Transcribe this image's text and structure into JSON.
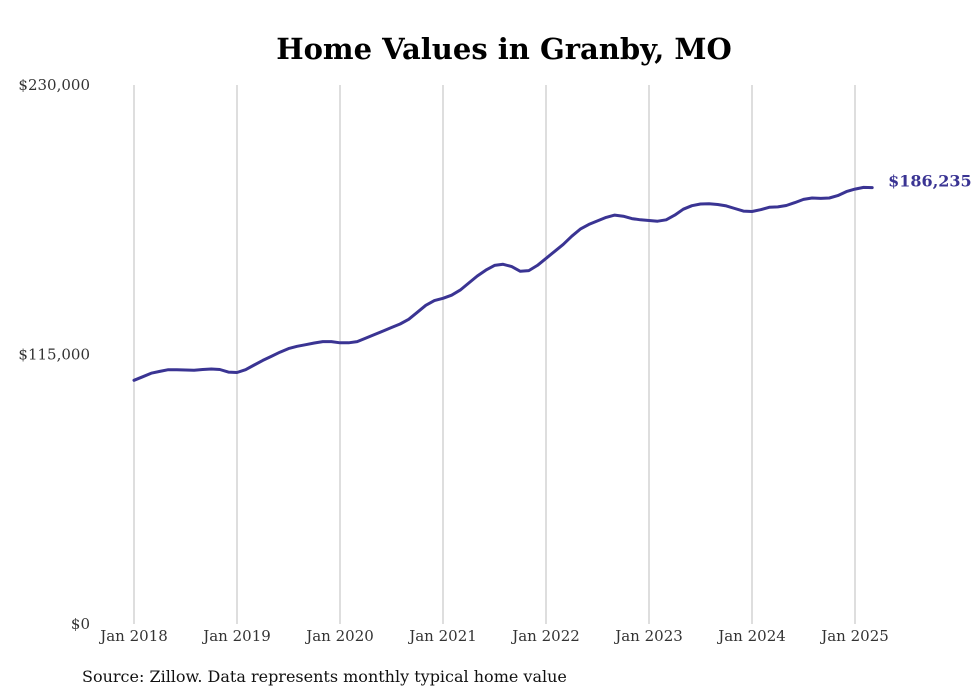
{
  "chart_data": {
    "type": "line",
    "title": "Home Values in Granby, MO",
    "xlabel": "",
    "ylabel": "",
    "x_tick_labels": [
      "Jan 2018",
      "Jan 2019",
      "Jan 2020",
      "Jan 2021",
      "Jan 2022",
      "Jan 2023",
      "Jan 2024",
      "Jan 2025"
    ],
    "y_tick_labels": [
      "$230,000",
      "$115,000",
      "$0"
    ],
    "y_ticks": [
      230000,
      115000,
      0
    ],
    "ylim": [
      0,
      230000
    ],
    "xlim": [
      "2018-01",
      "2025-03"
    ],
    "grid": "vertical gridlines at each January",
    "line_color": "#3a3493",
    "end_label": "$186,235",
    "series": [
      {
        "x": [
          "2018-01",
          "2018-02",
          "2018-03",
          "2018-04",
          "2018-05",
          "2018-06",
          "2018-07",
          "2018-08",
          "2018-09",
          "2018-10",
          "2018-11",
          "2018-12",
          "2019-01",
          "2019-02",
          "2019-03",
          "2019-04",
          "2019-05",
          "2019-06",
          "2019-07",
          "2019-08",
          "2019-09",
          "2019-10",
          "2019-11",
          "2019-12",
          "2020-01",
          "2020-02",
          "2020-03",
          "2020-04",
          "2020-05",
          "2020-06",
          "2020-07",
          "2020-08",
          "2020-09",
          "2020-10",
          "2020-11",
          "2020-12",
          "2021-01",
          "2021-02",
          "2021-03",
          "2021-04",
          "2021-05",
          "2021-06",
          "2021-07",
          "2021-08",
          "2021-09",
          "2021-10",
          "2021-11",
          "2021-12",
          "2022-01",
          "2022-02",
          "2022-03",
          "2022-04",
          "2022-05",
          "2022-06",
          "2022-07",
          "2022-08",
          "2022-09",
          "2022-10",
          "2022-11",
          "2022-12",
          "2023-01",
          "2023-02",
          "2023-03",
          "2023-04",
          "2023-05",
          "2023-06",
          "2023-07",
          "2023-08",
          "2023-09",
          "2023-10",
          "2023-11",
          "2023-12",
          "2024-01",
          "2024-02",
          "2024-03",
          "2024-04",
          "2024-05",
          "2024-06",
          "2024-07",
          "2024-08",
          "2024-09",
          "2024-10",
          "2024-11",
          "2024-12",
          "2025-01",
          "2025-02",
          "2025-03"
        ],
        "values": [
          104000,
          105500,
          107000,
          107800,
          108500,
          108500,
          108400,
          108300,
          108600,
          108800,
          108600,
          107500,
          107300,
          108500,
          110500,
          112500,
          114200,
          116000,
          117500,
          118500,
          119200,
          119900,
          120500,
          120500,
          120000,
          120000,
          120500,
          122000,
          123500,
          125000,
          126500,
          128000,
          130000,
          133000,
          136000,
          138000,
          139000,
          140300,
          142500,
          145500,
          148500,
          151000,
          153000,
          153500,
          152500,
          150500,
          150800,
          153000,
          156000,
          159000,
          162000,
          165500,
          168500,
          170500,
          172000,
          173500,
          174500,
          174000,
          173000,
          172500,
          172200,
          171900,
          172500,
          174500,
          177000,
          178500,
          179200,
          179300,
          179000,
          178400,
          177300,
          176200,
          176000,
          176800,
          177800,
          178000,
          178600,
          179800,
          181200,
          181800,
          181600,
          181800,
          182800,
          184500,
          185600,
          186300,
          186235
        ]
      }
    ]
  },
  "source": "Source: Zillow. Data represents monthly typical home value"
}
